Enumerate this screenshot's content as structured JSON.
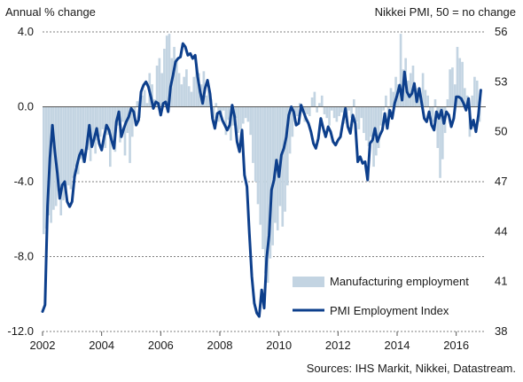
{
  "chart_data": {
    "type": "bar+line",
    "left_axis_title": "Annual % change",
    "right_axis_title": "Nikkei PMI, 50 = no change",
    "source": "Sources: IHS Markit, Nikkei, Datastream.",
    "x_ticks": [
      "2002",
      "2004",
      "2006",
      "2008",
      "2010",
      "2012",
      "2014",
      "2016"
    ],
    "y_left": {
      "range": [
        -12,
        4
      ],
      "ticks": [
        "4.0",
        "0.0",
        "-4.0",
        "-8.0",
        "-12.0"
      ],
      "tick_values": [
        4,
        0,
        -4,
        -8,
        -12
      ]
    },
    "y_right": {
      "range": [
        38,
        56
      ],
      "ticks": [
        "56",
        "53",
        "50",
        "47",
        "44",
        "41",
        "38"
      ],
      "tick_values": [
        56,
        53,
        50,
        47,
        44,
        41,
        38
      ]
    },
    "x_range": [
      2002.0,
      2017.0
    ],
    "grid": "horizontal dashed",
    "legend_position": "bottom-right",
    "colors": {
      "bars": "#c3d4e2",
      "line": "#0d3f8c",
      "zero_line": "#555555",
      "grid": "#7f7f7f"
    },
    "series": [
      {
        "name": "Manufacturing employment",
        "type": "bar",
        "axis": "left",
        "t": [
          2002.0,
          2002.083,
          2002.167,
          2002.25,
          2002.333,
          2002.417,
          2002.5,
          2002.583,
          2002.667,
          2002.75,
          2002.833,
          2002.917,
          2003.0,
          2003.083,
          2003.167,
          2003.25,
          2003.333,
          2003.417,
          2003.5,
          2003.583,
          2003.667,
          2003.75,
          2003.833,
          2003.917,
          2004.0,
          2004.083,
          2004.167,
          2004.25,
          2004.333,
          2004.417,
          2004.5,
          2004.583,
          2004.667,
          2004.75,
          2004.833,
          2004.917,
          2005.0,
          2005.083,
          2005.167,
          2005.25,
          2005.333,
          2005.417,
          2005.5,
          2005.583,
          2005.667,
          2005.75,
          2005.833,
          2005.917,
          2006.0,
          2006.083,
          2006.167,
          2006.25,
          2006.333,
          2006.417,
          2006.5,
          2006.583,
          2006.667,
          2006.75,
          2006.833,
          2006.917,
          2007.0,
          2007.083,
          2007.167,
          2007.25,
          2007.333,
          2007.417,
          2007.5,
          2007.583,
          2007.667,
          2007.75,
          2007.833,
          2007.917,
          2008.0,
          2008.083,
          2008.167,
          2008.25,
          2008.333,
          2008.417,
          2008.5,
          2008.583,
          2008.667,
          2008.75,
          2008.833,
          2008.917,
          2009.0,
          2009.083,
          2009.167,
          2009.25,
          2009.333,
          2009.417,
          2009.5,
          2009.583,
          2009.667,
          2009.75,
          2009.833,
          2009.917,
          2010.0,
          2010.083,
          2010.167,
          2010.25,
          2010.333,
          2010.417,
          2010.5,
          2010.583,
          2010.667,
          2010.75,
          2010.833,
          2010.917,
          2011.0,
          2011.083,
          2011.167,
          2011.25,
          2011.333,
          2011.417,
          2011.5,
          2011.583,
          2011.667,
          2011.75,
          2011.833,
          2011.917,
          2012.0,
          2012.083,
          2012.167,
          2012.25,
          2012.333,
          2012.417,
          2012.5,
          2012.583,
          2012.667,
          2012.75,
          2012.833,
          2012.917,
          2013.0,
          2013.083,
          2013.167,
          2013.25,
          2013.333,
          2013.417,
          2013.5,
          2013.583,
          2013.667,
          2013.75,
          2013.833,
          2013.917,
          2014.0,
          2014.083,
          2014.167,
          2014.25,
          2014.333,
          2014.417,
          2014.5,
          2014.583,
          2014.667,
          2014.75,
          2014.833,
          2014.917,
          2015.0,
          2015.083,
          2015.167,
          2015.25,
          2015.333,
          2015.417,
          2015.5,
          2015.583,
          2015.667,
          2015.75,
          2015.833,
          2015.917,
          2016.0,
          2016.083,
          2016.167,
          2016.25,
          2016.333,
          2016.417,
          2016.5,
          2016.583,
          2016.667,
          2016.75
        ],
        "values": [
          -6.8,
          -6.5,
          -5.8,
          -6.2,
          -5.5,
          -5.3,
          -4.5,
          -5.8,
          -5.0,
          -4.6,
          -4.2,
          -4.4,
          -3.8,
          -3.2,
          -3.6,
          -2.8,
          -3.0,
          -2.5,
          -2.3,
          -2.9,
          -2.1,
          -2.5,
          -1.8,
          -1.6,
          -1.2,
          -2.2,
          -1.5,
          -3.2,
          -1.8,
          -2.4,
          -1.0,
          -1.9,
          -0.8,
          -2.6,
          -1.4,
          -3.0,
          -1.6,
          -0.5,
          0.3,
          -0.6,
          0.6,
          0.9,
          0.2,
          1.8,
          1.2,
          0.4,
          2.2,
          2.6,
          1.8,
          3.1,
          3.8,
          3.9,
          2.6,
          3.2,
          2.4,
          1.8,
          1.2,
          1.6,
          2.0,
          1.1,
          0.8,
          1.6,
          2.3,
          1.8,
          1.2,
          1.9,
          0.6,
          1.0,
          0.4,
          -0.6,
          0.2,
          -0.8,
          -0.4,
          -0.2,
          -1.5,
          -0.7,
          -1.8,
          -1.0,
          -0.6,
          -1.4,
          -1.2,
          -0.9,
          -0.6,
          -0.8,
          -1.5,
          -3.0,
          -4.0,
          -5.2,
          -6.3,
          -7.6,
          -8.9,
          -9.4,
          -8.1,
          -7.4,
          -6.2,
          -6.6,
          -5.3,
          -6.4,
          -5.6,
          -4.2,
          -2.5,
          -1.6,
          -0.8,
          -0.5,
          0.2,
          -0.3,
          -0.8,
          -0.4,
          -0.5,
          0.5,
          0.8,
          -0.3,
          0.2,
          0.6,
          -0.4,
          -0.6,
          -1.0,
          -0.2,
          -0.6,
          -0.8,
          -0.5,
          -0.3,
          -0.9,
          -0.4,
          -0.2,
          -0.6,
          0.4,
          -0.8,
          -1.2,
          -0.6,
          -1.4,
          -1.8,
          -2.1,
          -1.6,
          -3.2,
          -2.6,
          -2.2,
          -1.0,
          -0.2,
          0.6,
          -0.8,
          1.0,
          0.8,
          1.6,
          1.2,
          3.9,
          2.0,
          2.6,
          1.4,
          1.8,
          2.2,
          0.8,
          1.0,
          0.6,
          1.8,
          0.9,
          0.6,
          -0.4,
          -0.8,
          0.4,
          -2.2,
          -3.8,
          -2.8,
          -1.4,
          0.4,
          2.0,
          2.1,
          1.2,
          3.2,
          2.6,
          2.4,
          1.0,
          0.6,
          -1.6,
          0.6,
          1.6,
          1.4,
          -0.8
        ]
      },
      {
        "name": "PMI Employment Index",
        "type": "line",
        "axis": "right",
        "t": [
          2002.0,
          2002.083,
          2002.167,
          2002.25,
          2002.333,
          2002.417,
          2002.5,
          2002.583,
          2002.667,
          2002.75,
          2002.833,
          2002.917,
          2003.0,
          2003.083,
          2003.167,
          2003.25,
          2003.333,
          2003.417,
          2003.5,
          2003.583,
          2003.667,
          2003.75,
          2003.833,
          2003.917,
          2004.0,
          2004.083,
          2004.167,
          2004.25,
          2004.333,
          2004.417,
          2004.5,
          2004.583,
          2004.667,
          2004.75,
          2004.833,
          2004.917,
          2005.0,
          2005.083,
          2005.167,
          2005.25,
          2005.333,
          2005.417,
          2005.5,
          2005.583,
          2005.667,
          2005.75,
          2005.833,
          2005.917,
          2006.0,
          2006.083,
          2006.167,
          2006.25,
          2006.333,
          2006.417,
          2006.5,
          2006.583,
          2006.667,
          2006.75,
          2006.833,
          2006.917,
          2007.0,
          2007.083,
          2007.167,
          2007.25,
          2007.333,
          2007.417,
          2007.5,
          2007.583,
          2007.667,
          2007.75,
          2007.833,
          2007.917,
          2008.0,
          2008.083,
          2008.167,
          2008.25,
          2008.333,
          2008.417,
          2008.5,
          2008.583,
          2008.667,
          2008.75,
          2008.833,
          2008.917,
          2009.0,
          2009.083,
          2009.167,
          2009.25,
          2009.333,
          2009.417,
          2009.5,
          2009.583,
          2009.667,
          2009.75,
          2009.833,
          2009.917,
          2010.0,
          2010.083,
          2010.167,
          2010.25,
          2010.333,
          2010.417,
          2010.5,
          2010.583,
          2010.667,
          2010.75,
          2010.833,
          2010.917,
          2011.0,
          2011.083,
          2011.167,
          2011.25,
          2011.333,
          2011.417,
          2011.5,
          2011.583,
          2011.667,
          2011.75,
          2011.833,
          2011.917,
          2012.0,
          2012.083,
          2012.167,
          2012.25,
          2012.333,
          2012.417,
          2012.5,
          2012.583,
          2012.667,
          2012.75,
          2012.833,
          2012.917,
          2013.0,
          2013.083,
          2013.167,
          2013.25,
          2013.333,
          2013.417,
          2013.5,
          2013.583,
          2013.667,
          2013.75,
          2013.833,
          2013.917,
          2014.0,
          2014.083,
          2014.167,
          2014.25,
          2014.333,
          2014.417,
          2014.5,
          2014.583,
          2014.667,
          2014.75,
          2014.833,
          2014.917,
          2015.0,
          2015.083,
          2015.167,
          2015.25,
          2015.333,
          2015.417,
          2015.5,
          2015.583,
          2015.667,
          2015.75,
          2015.833,
          2015.917,
          2016.0,
          2016.083,
          2016.167,
          2016.25,
          2016.333,
          2016.417,
          2016.5,
          2016.583,
          2016.667,
          2016.75,
          2016.833
        ],
        "values": [
          39.2,
          39.6,
          45.5,
          48.4,
          50.4,
          48.8,
          47.5,
          46.0,
          46.8,
          47.0,
          45.8,
          45.5,
          45.8,
          47.3,
          48.0,
          48.6,
          48.9,
          48.2,
          49.2,
          50.4,
          49.1,
          49.6,
          50.2,
          49.3,
          48.9,
          49.7,
          50.4,
          50.1,
          49.5,
          49.0,
          50.6,
          51.2,
          49.7,
          50.2,
          50.6,
          50.9,
          51.4,
          51.2,
          50.4,
          50.7,
          52.4,
          52.8,
          53.0,
          52.7,
          52.1,
          51.4,
          51.8,
          51.7,
          51.0,
          51.7,
          51.8,
          51.2,
          52.7,
          53.4,
          54.2,
          54.4,
          54.5,
          55.3,
          55.1,
          54.6,
          54.7,
          54.4,
          54.6,
          53.3,
          52.4,
          51.7,
          52.6,
          53.1,
          52.3,
          50.8,
          50.2,
          51.1,
          51.2,
          50.7,
          50.4,
          50.1,
          50.4,
          51.6,
          50.9,
          49.4,
          48.8,
          50.1,
          47.4,
          46.7,
          43.9,
          41.3,
          39.7,
          39.1,
          38.9,
          40.5,
          39.4,
          42.4,
          43.8,
          46.5,
          47.1,
          48.3,
          47.3,
          48.6,
          49.0,
          49.7,
          51.0,
          51.5,
          51.2,
          50.4,
          50.5,
          51.6,
          51.2,
          50.8,
          50.5,
          50.0,
          49.3,
          49.0,
          49.6,
          50.8,
          50.2,
          49.7,
          50.3,
          50.0,
          49.4,
          49.2,
          49.5,
          49.7,
          50.6,
          51.4,
          50.3,
          49.9,
          51.0,
          50.5,
          48.2,
          48.5,
          48.1,
          48.2,
          47.1,
          49.3,
          49.5,
          50.2,
          49.4,
          49.8,
          50.1,
          51.1,
          50.2,
          51.3,
          50.8,
          51.7,
          52.2,
          52.8,
          51.9,
          53.6,
          52.4,
          52.1,
          52.3,
          52.9,
          51.8,
          52.6,
          51.7,
          50.8,
          50.6,
          51.2,
          50.4,
          50.1,
          51.2,
          50.8,
          51.3,
          50.5,
          51.2,
          51.0,
          50.3,
          50.8,
          52.1,
          52.1,
          52.0,
          51.7,
          51.3,
          52.0,
          50.2,
          50.7,
          50.0,
          51.0,
          52.5
        ]
      }
    ]
  }
}
